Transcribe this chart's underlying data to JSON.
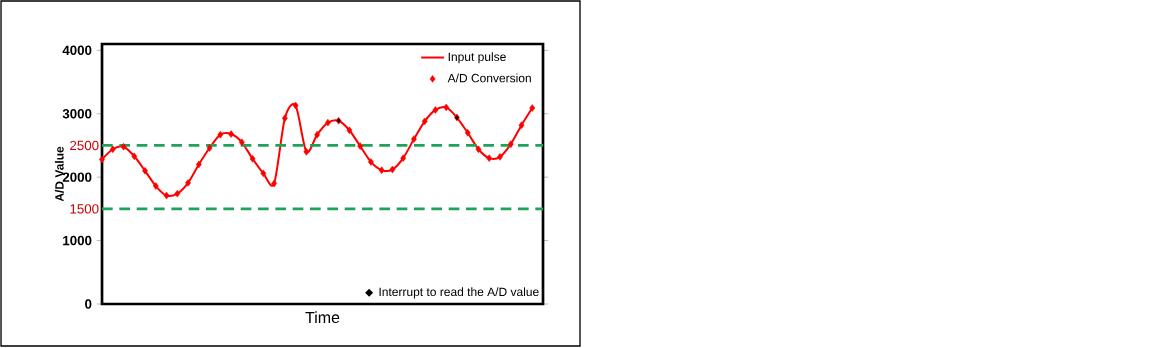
{
  "chart_data": {
    "type": "line",
    "xlabel": "Time",
    "ylabel": "A/D Value",
    "categories": [
      null,
      null,
      null,
      null,
      null,
      null,
      null,
      null,
      null,
      null,
      null,
      null,
      null,
      null,
      null,
      null,
      null,
      null,
      null,
      null,
      null,
      null,
      null,
      null,
      null,
      null,
      null,
      null,
      null,
      null,
      null,
      null,
      null,
      null,
      null,
      null,
      null,
      null,
      null,
      null,
      null,
      null
    ],
    "series": [
      {
        "name": "Input pulse",
        "marker": "none",
        "color": "#ff0000",
        "values": [
          2280,
          2440,
          2480,
          2330,
          2100,
          1860,
          1710,
          1740,
          1910,
          2200,
          2460,
          2670,
          2680,
          2550,
          2290,
          2060,
          1900,
          2930,
          3130,
          2400,
          2670,
          2860,
          2890,
          2740,
          2490,
          2240,
          2110,
          2120,
          2300,
          2600,
          2880,
          3060,
          3100,
          2940,
          2700,
          2440,
          2300,
          2320,
          2520,
          2820,
          3090,
          null
        ]
      },
      {
        "name": "A/D Conversion",
        "type": "scatter",
        "marker": "diamond",
        "color": "#ff0000",
        "values": [
          2280,
          2440,
          2480,
          2330,
          2100,
          1860,
          1710,
          1740,
          1910,
          2200,
          2460,
          2670,
          2680,
          2550,
          2290,
          2060,
          1900,
          2930,
          3130,
          2400,
          2670,
          2860,
          2890,
          2740,
          2490,
          2240,
          2110,
          2120,
          2300,
          2600,
          2880,
          3060,
          3100,
          2940,
          2700,
          2440,
          2300,
          2320,
          2520,
          2820,
          3090,
          null
        ]
      },
      {
        "name": "Interrupt to read the A/D value",
        "type": "scatter",
        "marker": "diamond",
        "color": "#000000",
        "values": [
          null,
          null,
          null,
          null,
          null,
          null,
          null,
          null,
          null,
          null,
          null,
          null,
          null,
          null,
          null,
          null,
          null,
          null,
          null,
          null,
          null,
          null,
          2890,
          null,
          null,
          null,
          null,
          null,
          null,
          null,
          null,
          null,
          null,
          2940,
          null,
          null,
          null,
          null,
          null,
          null,
          null,
          null
        ]
      }
    ],
    "ylim": [
      0,
      4100
    ],
    "yticks": [
      0,
      1000,
      2000,
      3000,
      4000
    ],
    "tick_labels": "y",
    "ref_lines": [
      {
        "axis": "y",
        "value": 2500,
        "label": "2500",
        "color": "#1fa35a",
        "line_style": "dashed"
      },
      {
        "axis": "y",
        "value": 1500,
        "label": "1500",
        "color": "#1fa35a",
        "line_style": "dashed"
      }
    ],
    "legend": "right",
    "grid": false
  }
}
